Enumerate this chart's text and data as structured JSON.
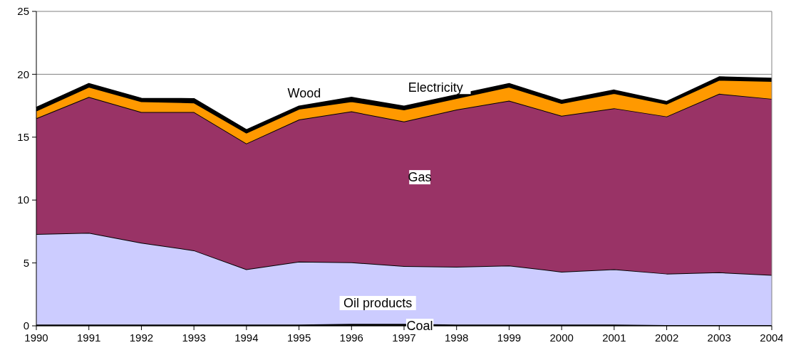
{
  "chart_data": {
    "type": "area",
    "stacked": true,
    "x": [
      1990,
      1991,
      1992,
      1993,
      1994,
      1995,
      1996,
      1997,
      1998,
      1999,
      2000,
      2001,
      2002,
      2003,
      2004
    ],
    "xlim": [
      1990,
      2004
    ],
    "xticks": [
      1990,
      1991,
      1992,
      1993,
      1994,
      1995,
      1996,
      1997,
      1998,
      1999,
      2000,
      2001,
      2002,
      2003,
      2004
    ],
    "ylim": [
      0,
      25
    ],
    "yticks": [
      0,
      5,
      10,
      15,
      20,
      25
    ],
    "grid": "y",
    "series": [
      {
        "name": "Coal",
        "color": "#000000",
        "values": [
          0.1,
          0.1,
          0.1,
          0.1,
          0.1,
          0.1,
          0.15,
          0.15,
          0.1,
          0.1,
          0.1,
          0.1,
          0.05,
          0.05,
          0.05
        ]
      },
      {
        "name": "Oil products",
        "color": "#ccccff",
        "values": [
          7.2,
          7.3,
          6.5,
          5.9,
          4.4,
          5.0,
          4.9,
          4.6,
          4.6,
          4.7,
          4.2,
          4.4,
          4.1,
          4.2,
          4.0
        ]
      },
      {
        "name": "Gas",
        "color": "#993366",
        "values": [
          9.2,
          10.8,
          10.4,
          11.0,
          10.0,
          11.3,
          12.0,
          11.5,
          12.5,
          13.1,
          12.4,
          12.8,
          12.5,
          14.2,
          14.0
        ]
      },
      {
        "name": "Wood",
        "color": "#ff9900",
        "values": [
          0.6,
          0.8,
          0.85,
          0.75,
          0.85,
          0.85,
          0.8,
          0.95,
          0.9,
          1.1,
          1.0,
          1.2,
          1.0,
          1.1,
          1.4
        ]
      },
      {
        "name": "Electricity",
        "color": "#000000",
        "values": [
          0.25,
          0.25,
          0.22,
          0.3,
          0.23,
          0.2,
          0.3,
          0.25,
          0.25,
          0.25,
          0.22,
          0.23,
          0.17,
          0.23,
          0.22
        ]
      }
    ]
  }
}
